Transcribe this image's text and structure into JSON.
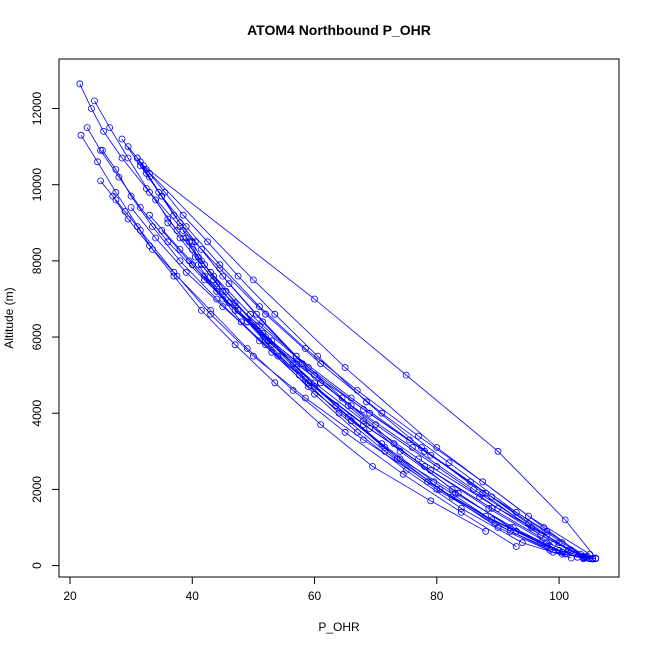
{
  "chart_data": {
    "type": "scatter",
    "title": "ATOM4 Northbound P_OHR",
    "xlabel": "P_OHR",
    "ylabel": "Altitude (m)",
    "xlim": [
      18.2,
      109.8
    ],
    "ylim": [
      -300,
      13300
    ],
    "x_ticks": [
      20,
      40,
      60,
      80,
      100
    ],
    "y_ticks": [
      0,
      2000,
      4000,
      6000,
      8000,
      10000,
      12000
    ],
    "x_tick_labels": [
      "20",
      "40",
      "60",
      "80",
      "100"
    ],
    "y_tick_labels": [
      "0",
      "2000",
      "4000",
      "6000",
      "8000",
      "10000",
      "12000"
    ],
    "grid": false,
    "color": "#0000ff",
    "marker": "open-circle",
    "series": [
      {
        "x": [
          21.6,
          23.5,
          25.5,
          28.5,
          32.5,
          38.0,
          44.5,
          52.0,
          61.0,
          71.0,
          82.0,
          93.0,
          100.5,
          104.0,
          106.0
        ],
        "y": [
          12650,
          12000,
          11400,
          10700,
          9900,
          8900,
          7800,
          6600,
          5300,
          4000,
          2700,
          1400,
          600,
          250,
          180
        ]
      },
      {
        "x": [
          21.8,
          24.5,
          27.5,
          31.5,
          37.0,
          43.0,
          50.0,
          58.5,
          68.0,
          78.5,
          88.0,
          97.0,
          103.0,
          105.5
        ],
        "y": [
          11300,
          10600,
          9800,
          8800,
          7700,
          6600,
          5500,
          4400,
          3300,
          2200,
          1300,
          600,
          220,
          180
        ]
      },
      {
        "x": [
          22.8,
          25.0,
          28.0,
          31.5,
          36.0,
          42.0,
          49.0,
          57.0,
          66.0,
          76.0,
          86.0,
          95.5,
          102.0,
          105.0
        ],
        "y": [
          11500,
          10900,
          10200,
          9400,
          8500,
          7500,
          6400,
          5300,
          4200,
          3100,
          2000,
          1000,
          400,
          190
        ]
      },
      {
        "x": [
          24.0,
          26.5,
          29.5,
          33.0,
          37.5,
          43.0,
          49.5,
          57.0,
          66.0,
          75.5,
          85.5,
          95.0,
          101.5,
          105.5
        ],
        "y": [
          12200,
          11500,
          10700,
          9800,
          8800,
          7700,
          6600,
          5500,
          4400,
          3300,
          2200,
          1100,
          400,
          180
        ]
      },
      {
        "x": [
          25.3,
          27.5,
          30.0,
          33.5,
          38.0,
          44.0,
          51.0,
          59.0,
          68.0,
          78.0,
          88.5,
          98.0,
          104.0
        ],
        "y": [
          10900,
          10400,
          9700,
          8900,
          8000,
          7000,
          5900,
          4800,
          3700,
          2600,
          1500,
          600,
          200
        ]
      },
      {
        "x": [
          25.0,
          27.0,
          29.5,
          33.0,
          37.5,
          43.0,
          49.0,
          56.5,
          65.0,
          74.5,
          84.0,
          93.0
        ],
        "y": [
          10100,
          9700,
          9100,
          8400,
          7600,
          6700,
          5700,
          4600,
          3500,
          2400,
          1400,
          500
        ]
      },
      {
        "x": [
          28.5,
          31.5,
          35.0,
          39.0,
          44.5,
          51.0,
          58.5,
          67.0,
          77.0,
          87.5,
          97.5,
          103.5
        ],
        "y": [
          11200,
          10500,
          9700,
          8900,
          7900,
          6800,
          5700,
          4600,
          3400,
          2200,
          1000,
          300
        ]
      },
      {
        "x": [
          29.5,
          31.0,
          33.0,
          35.5,
          38.5,
          42.5,
          47.5,
          53.5,
          60.5,
          68.5,
          77.5,
          87.5,
          97.0,
          104.5
        ],
        "y": [
          11000,
          10700,
          10300,
          9800,
          9200,
          8500,
          7600,
          6600,
          5500,
          4300,
          3100,
          1900,
          800,
          200
        ]
      },
      {
        "x": [
          31.0,
          32.5,
          34.5,
          37.0,
          40.5,
          45.0,
          50.5,
          57.0,
          64.5,
          73.0,
          82.5,
          92.0,
          100.0,
          105.5
        ],
        "y": [
          10700,
          10300,
          9800,
          9200,
          8500,
          7600,
          6600,
          5500,
          4400,
          3200,
          2000,
          1000,
          400,
          180
        ]
      },
      {
        "x": [
          31.5,
          33.0,
          35.0,
          38.0,
          41.5,
          46.0,
          51.5,
          58.0,
          65.5,
          74.0,
          83.5,
          93.0,
          101.0
        ],
        "y": [
          10600,
          10200,
          9700,
          9000,
          8300,
          7400,
          6400,
          5300,
          4200,
          3000,
          1900,
          900,
          300
        ]
      },
      {
        "x": [
          32.0,
          60.0,
          75.0,
          90.0,
          101.0,
          106.0
        ],
        "y": [
          10500,
          7000,
          5000,
          3000,
          1200,
          200
        ]
      },
      {
        "x": [
          32.5,
          50.0,
          65.0,
          80.0,
          95.0,
          105.0
        ],
        "y": [
          10400,
          7500,
          5200,
          3100,
          1300,
          300
        ]
      },
      {
        "x": [
          34.0,
          36.0,
          38.5,
          41.5,
          45.5,
          50.5,
          56.5,
          63.5,
          71.5,
          80.5,
          90.0,
          99.0,
          105.0
        ],
        "y": [
          9600,
          9100,
          8600,
          8000,
          7200,
          6300,
          5300,
          4200,
          3100,
          2000,
          1000,
          350,
          180
        ]
      },
      {
        "x": [
          36.0,
          38.0,
          40.5,
          43.5,
          47.5,
          52.5,
          58.5,
          65.5,
          73.5,
          82.5,
          92.0,
          100.5,
          105.5
        ],
        "y": [
          9000,
          8600,
          8100,
          7500,
          6700,
          5900,
          4900,
          3900,
          2800,
          1800,
          900,
          300,
          170
        ]
      },
      {
        "x": [
          38.5,
          39.5,
          41.0,
          43.5,
          47.0,
          51.5,
          57.0,
          63.5,
          71.0,
          79.5,
          89.0,
          98.0,
          104.0
        ],
        "y": [
          8800,
          8500,
          8100,
          7600,
          6900,
          6100,
          5200,
          4200,
          3200,
          2200,
          1200,
          500,
          180
        ]
      },
      {
        "x": [
          39.0,
          40.0,
          41.5,
          44.0,
          47.5,
          52.0,
          57.5,
          64.0,
          71.5,
          80.0,
          89.5,
          98.5
        ],
        "y": [
          8600,
          8300,
          7900,
          7400,
          6700,
          5900,
          5000,
          4000,
          3000,
          2000,
          1100,
          400
        ]
      },
      {
        "x": [
          27.5,
          29.0,
          31.0,
          33.5,
          37.0,
          41.5,
          47.0,
          53.5,
          61.0,
          69.5,
          79.0,
          88.0
        ],
        "y": [
          9600,
          9300,
          8900,
          8300,
          7600,
          6700,
          5800,
          4800,
          3700,
          2600,
          1700,
          900
        ]
      },
      {
        "x": [
          40.0,
          42.0,
          45.0,
          49.0,
          54.0,
          60.0,
          67.0,
          75.0,
          84.0,
          94.0,
          102.0
        ],
        "y": [
          8500,
          7900,
          7200,
          6400,
          5500,
          4500,
          3500,
          2500,
          1500,
          600,
          200
        ]
      },
      {
        "x": [
          39.5,
          45.0,
          52.0,
          60.0,
          69.0,
          79.0,
          89.0,
          98.0
        ],
        "y": [
          8000,
          7000,
          6000,
          5000,
          4000,
          2900,
          1800,
          800
        ]
      },
      {
        "x": [
          41.0,
          44.0,
          48.0,
          53.0,
          59.0,
          66.0,
          74.0,
          83.0,
          92.5,
          100.5
        ],
        "y": [
          7900,
          7200,
          6400,
          5600,
          4700,
          3800,
          2800,
          1900,
          1000,
          350
        ]
      },
      {
        "x": [
          42.0,
          47.0,
          53.0,
          60.0,
          68.0,
          77.0,
          87.0,
          97.0,
          104.0
        ],
        "y": [
          7600,
          6700,
          5800,
          4800,
          3800,
          2800,
          1800,
          800,
          220
        ]
      },
      {
        "x": [
          30.0,
          34.0,
          39.0,
          45.0,
          52.0,
          60.0,
          69.0,
          79.0,
          89.0,
          99.0
        ],
        "y": [
          9400,
          8600,
          7700,
          6800,
          5800,
          4700,
          3600,
          2500,
          1500,
          550
        ]
      },
      {
        "x": [
          35.0,
          40.0,
          46.0,
          53.0,
          61.0,
          70.0,
          80.0,
          90.0,
          100.0
        ],
        "y": [
          8800,
          7900,
          6900,
          5900,
          4800,
          3700,
          2600,
          1500,
          600
        ]
      },
      {
        "x": [
          33.0,
          38.0,
          44.0,
          51.0,
          59.0,
          68.0,
          78.0,
          88.0,
          98.0,
          104.5
        ],
        "y": [
          9200,
          8300,
          7300,
          6300,
          5200,
          4100,
          3000,
          1900,
          900,
          230
        ]
      }
    ]
  }
}
